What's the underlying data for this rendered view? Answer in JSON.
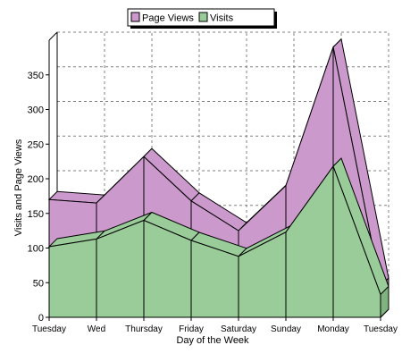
{
  "chart_data": {
    "type": "area",
    "style": "3d-stacked-area",
    "categories": [
      "Tuesday",
      "Wed",
      "Thursday",
      "Friday",
      "Saturday",
      "Sunday",
      "Monday",
      "Tuesday"
    ],
    "series": [
      {
        "name": "Page Views",
        "values": [
          170,
          165,
          232,
          168,
          125,
          190,
          390,
          45
        ],
        "color": "#cc99cc"
      },
      {
        "name": "Visits",
        "values": [
          102,
          113,
          140,
          111,
          88,
          123,
          218,
          33
        ],
        "color": "#99cc99"
      }
    ],
    "xlabel": "Day of the Week",
    "ylabel": "Visits and Page Views",
    "ylim": [
      0,
      400
    ],
    "yticks": [
      0,
      50,
      100,
      150,
      200,
      250,
      300,
      350
    ],
    "grid": true,
    "legend_position": "top-center"
  }
}
